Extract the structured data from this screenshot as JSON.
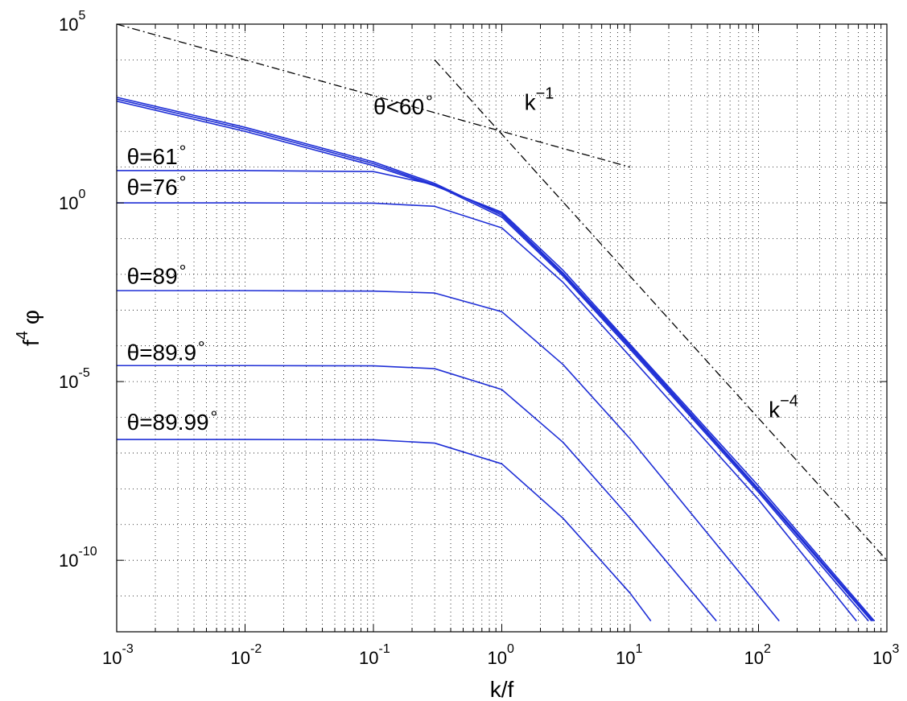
{
  "chart_data": {
    "type": "line",
    "xscale": "log",
    "yscale": "log",
    "xlim": [
      0.001,
      1000
    ],
    "ylim": [
      1e-12,
      100000.0
    ],
    "grid": true,
    "xlabel": "k/f",
    "ylabel": {
      "base": "f",
      "exp": "4",
      "symbol": "φ"
    },
    "x_ticks": [
      {
        "base": "10",
        "exp": "-3",
        "value": 0.001
      },
      {
        "base": "10",
        "exp": "-2",
        "value": 0.01
      },
      {
        "base": "10",
        "exp": "-1",
        "value": 0.1
      },
      {
        "base": "10",
        "exp": "0",
        "value": 1
      },
      {
        "base": "10",
        "exp": "1",
        "value": 10
      },
      {
        "base": "10",
        "exp": "2",
        "value": 100
      },
      {
        "base": "10",
        "exp": "3",
        "value": 1000
      }
    ],
    "y_ticks": [
      {
        "base": "10",
        "exp": "-10",
        "value": 1e-10
      },
      {
        "base": "10",
        "exp": "-5",
        "value": 1e-05
      },
      {
        "base": "10",
        "exp": "0",
        "value": 1
      },
      {
        "base": "10",
        "exp": "5",
        "value": 100000.0
      }
    ],
    "series": [
      {
        "name": "θ<60°",
        "values_x": [
          0.001,
          0.01,
          0.1,
          0.3,
          1,
          3,
          10,
          100,
          800
        ],
        "values_y": [
          700,
          100,
          11,
          3.0,
          0.55,
          0.013,
          0.00011,
          1.2e-08,
          2e-12
        ]
      },
      {
        "name": "θ<60°",
        "values_x": [
          0.001,
          0.01,
          0.1,
          0.3,
          1,
          3,
          10,
          100,
          780
        ],
        "values_y": [
          800,
          115,
          12.5,
          3.2,
          0.5,
          0.011,
          0.0001,
          1e-08,
          2e-12
        ]
      },
      {
        "name": "θ<60°",
        "values_x": [
          0.001,
          0.01,
          0.1,
          0.3,
          1,
          3,
          10,
          100,
          760
        ],
        "values_y": [
          900,
          130,
          14,
          3.5,
          0.45,
          0.01,
          9e-05,
          9e-09,
          2e-12
        ]
      },
      {
        "name": "θ=61°",
        "values_x": [
          0.001,
          0.01,
          0.1,
          0.3,
          1,
          3,
          10,
          100,
          720
        ],
        "values_y": [
          8,
          8,
          7.5,
          3.2,
          0.4,
          0.009,
          8e-05,
          8e-09,
          2e-12
        ]
      },
      {
        "name": "θ=76°",
        "values_x": [
          0.001,
          0.01,
          0.1,
          0.3,
          1,
          3,
          10,
          100,
          580
        ],
        "values_y": [
          1.0,
          1.0,
          0.98,
          0.8,
          0.2,
          0.006,
          5e-05,
          5e-09,
          2e-12
        ]
      },
      {
        "name": "θ=89°",
        "values_x": [
          0.001,
          0.01,
          0.1,
          0.3,
          1,
          3,
          10,
          145
        ],
        "values_y": [
          0.0035,
          0.0035,
          0.0034,
          0.003,
          0.0009,
          3e-05,
          2.5e-07,
          2e-12
        ]
      },
      {
        "name": "θ=89.9°",
        "values_x": [
          0.001,
          0.01,
          0.1,
          0.3,
          1,
          3,
          10,
          47
        ],
        "values_y": [
          2.8e-05,
          2.8e-05,
          2.75e-05,
          2.3e-05,
          6e-06,
          2e-07,
          1.5e-09,
          2e-12
        ]
      },
      {
        "name": "θ=89.99°",
        "values_x": [
          0.001,
          0.01,
          0.1,
          0.3,
          1,
          3,
          10,
          14.5
        ],
        "values_y": [
          2.4e-07,
          2.4e-07,
          2.35e-07,
          1.9e-07,
          5e-08,
          1.5e-09,
          1.2e-11,
          2e-12
        ]
      }
    ],
    "reference_lines": [
      {
        "name": "k^-1",
        "x": [
          0.001,
          10
        ],
        "y": [
          100000.0,
          10
        ]
      },
      {
        "name": "k^-4",
        "x": [
          0.3,
          1000
        ],
        "y": [
          10000.0,
          1e-10
        ]
      }
    ],
    "annotations": [
      {
        "base": "θ<60",
        "sup": "∘",
        "at": [
          0.1,
          300
        ]
      },
      {
        "base": "θ=61",
        "sup": "∘",
        "at": [
          0.0012,
          12
        ]
      },
      {
        "base": "θ=76",
        "sup": "∘",
        "at": [
          0.0012,
          1.7
        ]
      },
      {
        "base": "θ=89",
        "sup": "∘",
        "at": [
          0.0012,
          0.0055
        ]
      },
      {
        "base": "θ=89.9",
        "sup": "∘",
        "at": [
          0.0012,
          4e-05
        ]
      },
      {
        "base": "θ=89.99",
        "sup": "∘",
        "at": [
          0.0012,
          4.5e-07
        ]
      },
      {
        "base": "k",
        "sup": "−1",
        "at": [
          1.5,
          400
        ]
      },
      {
        "base": "k",
        "sup": "−4",
        "at": [
          120,
          1e-06
        ]
      }
    ],
    "colors": {
      "series": "#1f2fd6",
      "reference": "#000000",
      "grid": "#000000"
    }
  }
}
